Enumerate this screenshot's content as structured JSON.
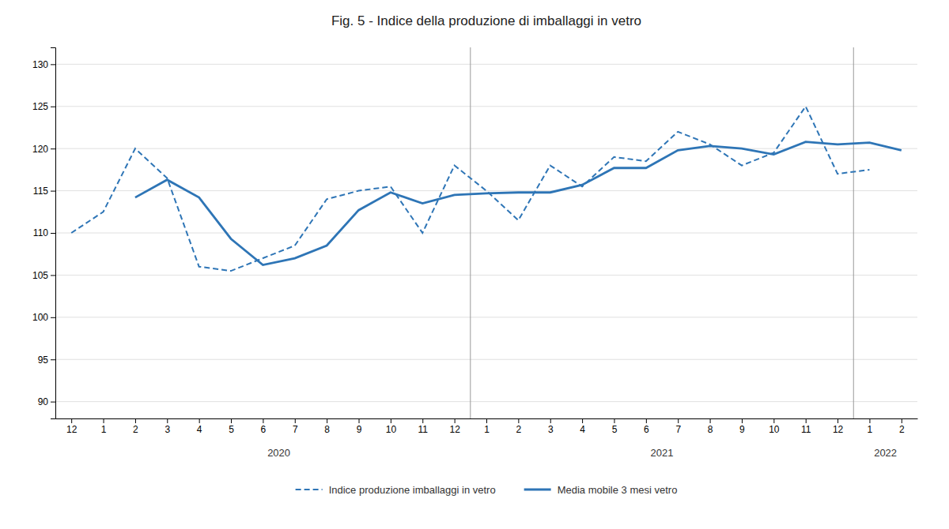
{
  "chart_data": {
    "type": "line",
    "title": "Fig. 5 - Indice della produzione di imballaggi in vetro",
    "categories": [
      "12",
      "1",
      "2",
      "3",
      "4",
      "5",
      "6",
      "7",
      "8",
      "9",
      "10",
      "11",
      "12",
      "1",
      "2",
      "3",
      "4",
      "5",
      "6",
      "7",
      "8",
      "9",
      "10",
      "11",
      "12",
      "1",
      "2"
    ],
    "series": [
      {
        "name": "Indice produzione imballaggi in vetro",
        "color": "#2E75B6",
        "line_style": "dashed",
        "values": [
          110.0,
          112.5,
          120.0,
          116.5,
          106.0,
          105.5,
          107.0,
          108.5,
          114.0,
          115.0,
          115.5,
          110.0,
          118.0,
          115.0,
          111.5,
          118.0,
          115.5,
          119.0,
          118.5,
          122.0,
          120.5,
          118.0,
          119.5,
          125.0,
          117.0,
          117.5,
          null
        ]
      },
      {
        "name": "Media mobile 3 mesi vetro",
        "color": "#2E75B6",
        "line_style": "solid",
        "values": [
          null,
          null,
          114.2,
          116.3,
          114.2,
          109.3,
          106.2,
          107.0,
          108.5,
          112.7,
          114.8,
          113.5,
          114.5,
          114.7,
          114.8,
          114.8,
          115.7,
          117.7,
          117.7,
          119.8,
          120.3,
          120.0,
          119.3,
          120.8,
          120.5,
          120.7,
          119.8
        ]
      }
    ],
    "annotations": [
      {
        "text": "2020",
        "x": 6.5
      },
      {
        "text": "2021",
        "x": 18.5
      },
      {
        "text": "2022",
        "x": 25.5
      }
    ],
    "vlines": [
      12.5,
      24.5
    ],
    "ylim": [
      88,
      132
    ],
    "yticks": [
      90,
      95,
      100,
      105,
      110,
      115,
      120,
      125,
      130
    ],
    "grid": true,
    "legend": "bottom"
  }
}
